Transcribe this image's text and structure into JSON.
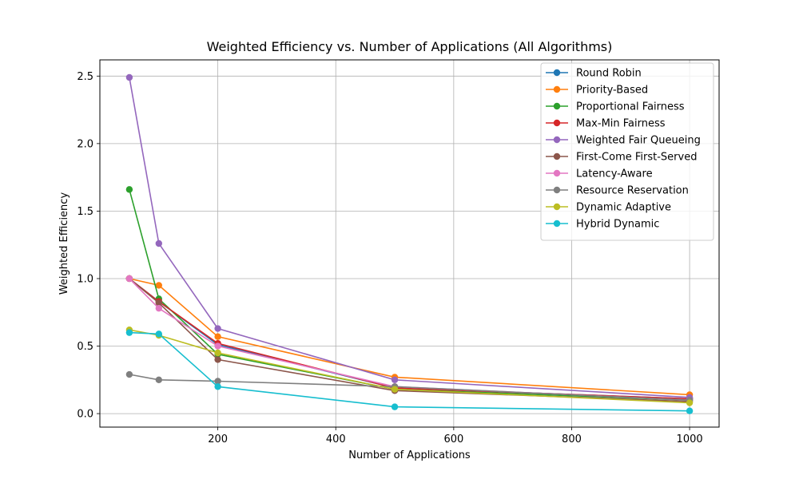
{
  "chart_data": {
    "type": "line",
    "title": "Weighted Efficiency vs. Number of Applications (All Algorithms)",
    "xlabel": "Number of Applications",
    "ylabel": "Weighted Efficiency",
    "x": [
      50,
      100,
      200,
      500,
      1000
    ],
    "xlim": [
      0,
      1050
    ],
    "ylim": [
      -0.1,
      2.62
    ],
    "xticks": [
      200,
      400,
      600,
      800,
      1000
    ],
    "yticks": [
      0.0,
      0.5,
      1.0,
      1.5,
      2.0,
      2.5
    ],
    "ytick_labels": [
      "0.0",
      "0.5",
      "1.0",
      "1.5",
      "2.0",
      "2.5"
    ],
    "grid": true,
    "legend_position": "top-right",
    "series": [
      {
        "name": "Round Robin",
        "color": "#1f77b4",
        "values": [
          1.0,
          0.83,
          0.51,
          0.19,
          0.11
        ]
      },
      {
        "name": "Priority-Based",
        "color": "#ff7f0e",
        "values": [
          1.0,
          0.95,
          0.57,
          0.27,
          0.14
        ]
      },
      {
        "name": "Proportional Fairness",
        "color": "#2ca02c",
        "values": [
          1.66,
          0.85,
          0.44,
          0.18,
          0.1
        ]
      },
      {
        "name": "Max-Min Fairness",
        "color": "#d62728",
        "values": [
          1.0,
          0.83,
          0.52,
          0.19,
          0.11
        ]
      },
      {
        "name": "Weighted Fair Queueing",
        "color": "#9467bd",
        "values": [
          2.49,
          1.26,
          0.63,
          0.25,
          0.12
        ]
      },
      {
        "name": "First-Come First-Served",
        "color": "#8c564b",
        "values": [
          1.0,
          0.82,
          0.4,
          0.17,
          0.09
        ]
      },
      {
        "name": "Latency-Aware",
        "color": "#e377c2",
        "values": [
          1.0,
          0.78,
          0.5,
          0.2,
          0.1
        ]
      },
      {
        "name": "Resource Reservation",
        "color": "#7f7f7f",
        "values": [
          0.29,
          0.25,
          0.24,
          0.2,
          0.1
        ]
      },
      {
        "name": "Dynamic Adaptive",
        "color": "#bcbd22",
        "values": [
          0.62,
          0.58,
          0.45,
          0.18,
          0.08
        ]
      },
      {
        "name": "Hybrid Dynamic",
        "color": "#17becf",
        "values": [
          0.6,
          0.59,
          0.2,
          0.05,
          0.02
        ]
      }
    ]
  }
}
